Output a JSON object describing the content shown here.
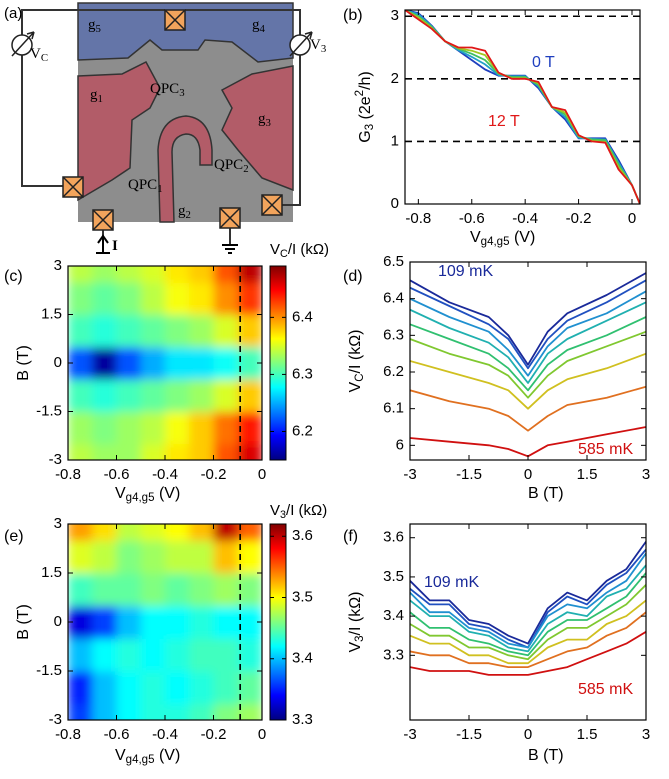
{
  "diagram": {
    "panel": "(a)",
    "labels": [
      [
        "g",
        {
          "sub": "5"
        }
      ],
      [
        "g",
        {
          "sub": "4"
        }
      ],
      [
        "g",
        {
          "sub": "1"
        }
      ],
      [
        "g",
        {
          "sub": "3"
        }
      ],
      [
        "g",
        {
          "sub": "2"
        }
      ],
      [
        "QPC",
        {
          "sub": "3"
        }
      ],
      [
        "QPC",
        {
          "sub": "1"
        }
      ],
      [
        "QPC",
        {
          "sub": "2"
        }
      ],
      [
        "V",
        {
          "sub": "C"
        }
      ],
      [
        "V",
        {
          "sub": "3"
        }
      ],
      [
        "I"
      ]
    ]
  },
  "chart_data": [
    {
      "type": "line",
      "panel": "(b)",
      "ylabel": [
        "G",
        {
          "sub": "3"
        },
        " (2e",
        {
          "sup": "2"
        },
        "/h)"
      ],
      "xlabel": [
        "V",
        {
          "sub": "g4,g5"
        },
        " (V)"
      ],
      "xlim": [
        -0.85,
        0.03
      ],
      "ylim": [
        0,
        3.1
      ],
      "xticks": [
        -0.8,
        -0.6,
        -0.4,
        -0.2,
        0
      ],
      "yticks": [
        0,
        1,
        2,
        3
      ],
      "hlines": [
        1,
        2,
        3
      ],
      "x": [
        -0.85,
        -0.8,
        -0.75,
        -0.7,
        -0.65,
        -0.6,
        -0.55,
        -0.5,
        -0.45,
        -0.4,
        -0.35,
        -0.3,
        -0.25,
        -0.2,
        -0.15,
        -0.1,
        -0.05,
        0,
        0.03
      ],
      "series": [
        {
          "color": "#1f3fbf",
          "values": [
            3.1,
            3.05,
            2.85,
            2.6,
            2.45,
            2.3,
            2.15,
            2.05,
            2.05,
            2.05,
            1.85,
            1.55,
            1.35,
            1.05,
            1.05,
            1.05,
            0.7,
            0.3,
            0
          ]
        },
        {
          "color": "#20a0c8",
          "values": [
            3.1,
            3.03,
            2.84,
            2.6,
            2.46,
            2.35,
            2.23,
            2.06,
            2.04,
            2.04,
            1.88,
            1.55,
            1.39,
            1.06,
            1.04,
            1.03,
            0.66,
            0.3,
            0
          ]
        },
        {
          "color": "#40c060",
          "values": [
            3.1,
            3.0,
            2.83,
            2.6,
            2.48,
            2.4,
            2.3,
            2.08,
            2.03,
            2.03,
            1.9,
            1.55,
            1.43,
            1.08,
            1.03,
            1.02,
            0.63,
            0.3,
            0
          ]
        },
        {
          "color": "#a0c820",
          "values": [
            3.1,
            2.98,
            2.81,
            2.6,
            2.49,
            2.45,
            2.38,
            2.09,
            2.01,
            2.01,
            1.93,
            1.55,
            1.46,
            1.09,
            1.01,
            0.99,
            0.59,
            0.3,
            0
          ]
        },
        {
          "color": "#e01818",
          "values": [
            3.1,
            2.95,
            2.8,
            2.6,
            2.5,
            2.5,
            2.45,
            2.1,
            2.0,
            2.0,
            1.95,
            1.55,
            1.5,
            1.1,
            1.0,
            0.98,
            0.55,
            0.3,
            0
          ]
        }
      ],
      "annotations": [
        {
          "text": "0 T",
          "color": "#1f3fbf"
        },
        {
          "text": "12 T",
          "color": "#e01818"
        }
      ]
    },
    {
      "type": "heatmap",
      "panel": "(c)",
      "colormap": "jet",
      "ylabel": [
        "B (T)"
      ],
      "xlabel": [
        "V",
        {
          "sub": "g4,g5"
        },
        " (V)"
      ],
      "colorbar_label": [
        "V",
        {
          "sub": "C"
        },
        "/I (kΩ)"
      ],
      "xlim": [
        -0.8,
        0
      ],
      "ylim": [
        -3,
        3
      ],
      "xticks": [
        -0.8,
        -0.6,
        -0.4,
        -0.2,
        0
      ],
      "yticks": [
        3,
        1.5,
        0,
        -1.5,
        -3
      ],
      "clim": [
        6.15,
        6.49
      ],
      "cbticks": [
        6.2,
        6.3,
        6.4
      ],
      "vline": -0.09,
      "x": [
        -0.75,
        -0.65,
        -0.55,
        -0.45,
        -0.35,
        -0.25,
        -0.15,
        -0.05
      ],
      "y": [
        -3,
        -2,
        -1,
        0,
        1,
        2,
        3
      ],
      "z": [
        [
          6.34,
          6.33,
          6.33,
          6.35,
          6.37,
          6.38,
          6.42,
          6.46
        ],
        [
          6.33,
          6.32,
          6.33,
          6.34,
          6.36,
          6.38,
          6.41,
          6.44
        ],
        [
          6.3,
          6.29,
          6.3,
          6.31,
          6.32,
          6.33,
          6.35,
          6.38
        ],
        [
          6.22,
          6.16,
          6.22,
          6.25,
          6.27,
          6.27,
          6.28,
          6.3
        ],
        [
          6.3,
          6.29,
          6.3,
          6.31,
          6.32,
          6.33,
          6.35,
          6.38
        ],
        [
          6.32,
          6.31,
          6.32,
          6.34,
          6.36,
          6.37,
          6.4,
          6.43
        ],
        [
          6.34,
          6.33,
          6.34,
          6.35,
          6.37,
          6.38,
          6.42,
          6.47
        ]
      ]
    },
    {
      "type": "line",
      "panel": "(d)",
      "ylabel": [
        "V",
        {
          "sub": "C"
        },
        "/I (kΩ)"
      ],
      "xlabel": [
        "B (T)"
      ],
      "xlim": [
        -3,
        3
      ],
      "ylim": [
        5.96,
        6.5
      ],
      "xticks": [
        -3,
        -1.5,
        0,
        1.5,
        3
      ],
      "yticks": [
        6,
        6.1,
        6.2,
        6.3,
        6.4,
        6.5
      ],
      "x": [
        -3,
        -2,
        -1,
        -0.5,
        0,
        0.5,
        1,
        2,
        3
      ],
      "series": [
        {
          "color": "#1a2a9a",
          "values": [
            6.45,
            6.39,
            6.35,
            6.3,
            6.22,
            6.31,
            6.36,
            6.41,
            6.47
          ]
        },
        {
          "color": "#2050c0",
          "values": [
            6.43,
            6.38,
            6.33,
            6.29,
            6.21,
            6.29,
            6.34,
            6.39,
            6.45
          ]
        },
        {
          "color": "#2090d0",
          "values": [
            6.4,
            6.35,
            6.31,
            6.26,
            6.19,
            6.27,
            6.32,
            6.36,
            6.42
          ]
        },
        {
          "color": "#20b0b0",
          "values": [
            6.37,
            6.32,
            6.28,
            6.24,
            6.17,
            6.25,
            6.29,
            6.34,
            6.39
          ]
        },
        {
          "color": "#30c070",
          "values": [
            6.33,
            6.29,
            6.25,
            6.21,
            6.15,
            6.22,
            6.26,
            6.3,
            6.35
          ]
        },
        {
          "color": "#80c830",
          "values": [
            6.29,
            6.25,
            6.22,
            6.19,
            6.13,
            6.19,
            6.23,
            6.27,
            6.31
          ]
        },
        {
          "color": "#d0c020",
          "values": [
            6.23,
            6.2,
            6.17,
            6.15,
            6.1,
            6.15,
            6.18,
            6.21,
            6.25
          ]
        },
        {
          "color": "#e07020",
          "values": [
            6.15,
            6.12,
            6.1,
            6.08,
            6.04,
            6.08,
            6.11,
            6.13,
            6.16
          ]
        },
        {
          "color": "#d01010",
          "values": [
            6.02,
            6.01,
            6.0,
            5.99,
            5.97,
            6.0,
            6.01,
            6.03,
            6.05
          ]
        }
      ],
      "annotations": [
        {
          "text": "109 mK",
          "color": "#1a2a9a"
        },
        {
          "text": "585 mK",
          "color": "#d01010"
        }
      ]
    },
    {
      "type": "heatmap",
      "panel": "(e)",
      "colormap": "jet",
      "ylabel": [
        "B (T)"
      ],
      "xlabel": [
        "V",
        {
          "sub": "g4,g5"
        },
        " (V)"
      ],
      "colorbar_label": [
        "V",
        {
          "sub": "3"
        },
        "/I (kΩ)"
      ],
      "xlim": [
        -0.8,
        0
      ],
      "ylim": [
        -3,
        3
      ],
      "xticks": [
        -0.8,
        -0.6,
        -0.4,
        -0.2,
        0
      ],
      "yticks": [
        3,
        1.5,
        0,
        -1.5,
        -3
      ],
      "clim": [
        3.3,
        3.62
      ],
      "cbticks": [
        3.3,
        3.4,
        3.5,
        3.6
      ],
      "vline": -0.09,
      "x": [
        -0.75,
        -0.65,
        -0.55,
        -0.45,
        -0.35,
        -0.25,
        -0.15,
        -0.05
      ],
      "y": [
        -3,
        -2,
        -1,
        0,
        1,
        2,
        3
      ],
      "z": [
        [
          3.36,
          3.4,
          3.42,
          3.43,
          3.43,
          3.44,
          3.46,
          3.47
        ],
        [
          3.35,
          3.4,
          3.42,
          3.43,
          3.42,
          3.43,
          3.44,
          3.45
        ],
        [
          3.4,
          3.42,
          3.43,
          3.42,
          3.43,
          3.44,
          3.44,
          3.43
        ],
        [
          3.33,
          3.36,
          3.4,
          3.42,
          3.42,
          3.43,
          3.42,
          3.42
        ],
        [
          3.44,
          3.45,
          3.45,
          3.46,
          3.45,
          3.46,
          3.47,
          3.46
        ],
        [
          3.49,
          3.48,
          3.46,
          3.47,
          3.48,
          3.48,
          3.52,
          3.5
        ],
        [
          3.53,
          3.51,
          3.48,
          3.49,
          3.5,
          3.52,
          3.6,
          3.55
        ]
      ]
    },
    {
      "type": "line",
      "panel": "(f)",
      "ylabel": [
        "V",
        {
          "sub": "3"
        },
        "/I (kΩ)"
      ],
      "xlabel": [
        "B (T)"
      ],
      "xlim": [
        -3,
        3
      ],
      "ylim": [
        3.135,
        3.635
      ],
      "xticks": [
        -3,
        -1.5,
        0,
        1.5,
        3
      ],
      "yticks": [
        3.3,
        3.4,
        3.5,
        3.6
      ],
      "x": [
        -3,
        -2.5,
        -2,
        -1.5,
        -1,
        -0.5,
        0,
        0.5,
        1,
        1.5,
        2,
        2.5,
        3
      ],
      "series": [
        {
          "color": "#1a2a9a",
          "values": [
            3.49,
            3.44,
            3.44,
            3.39,
            3.38,
            3.35,
            3.33,
            3.42,
            3.46,
            3.44,
            3.49,
            3.52,
            3.59
          ]
        },
        {
          "color": "#2050c0",
          "values": [
            3.47,
            3.43,
            3.43,
            3.38,
            3.37,
            3.34,
            3.32,
            3.41,
            3.45,
            3.43,
            3.48,
            3.51,
            3.57
          ]
        },
        {
          "color": "#2090d0",
          "values": [
            3.46,
            3.41,
            3.41,
            3.37,
            3.36,
            3.33,
            3.32,
            3.4,
            3.43,
            3.42,
            3.46,
            3.49,
            3.56
          ]
        },
        {
          "color": "#20b0b0",
          "values": [
            3.44,
            3.4,
            3.4,
            3.36,
            3.35,
            3.32,
            3.31,
            3.38,
            3.41,
            3.4,
            3.45,
            3.47,
            3.53
          ]
        },
        {
          "color": "#30c070",
          "values": [
            3.41,
            3.37,
            3.37,
            3.34,
            3.33,
            3.31,
            3.3,
            3.36,
            3.39,
            3.39,
            3.42,
            3.45,
            3.51
          ]
        },
        {
          "color": "#80c830",
          "values": [
            3.38,
            3.35,
            3.35,
            3.32,
            3.32,
            3.3,
            3.29,
            3.34,
            3.37,
            3.37,
            3.4,
            3.43,
            3.48
          ]
        },
        {
          "color": "#d0c020",
          "values": [
            3.35,
            3.33,
            3.33,
            3.3,
            3.3,
            3.28,
            3.28,
            3.32,
            3.34,
            3.34,
            3.38,
            3.4,
            3.44
          ]
        },
        {
          "color": "#e07020",
          "values": [
            3.31,
            3.3,
            3.3,
            3.28,
            3.28,
            3.27,
            3.27,
            3.29,
            3.31,
            3.32,
            3.35,
            3.37,
            3.41
          ]
        },
        {
          "color": "#d01010",
          "values": [
            3.27,
            3.26,
            3.26,
            3.26,
            3.25,
            3.25,
            3.25,
            3.26,
            3.27,
            3.29,
            3.31,
            3.33,
            3.36
          ]
        }
      ],
      "annotations": [
        {
          "text": "109 mK",
          "color": "#1a2a9a"
        },
        {
          "text": "585 mK",
          "color": "#d01010"
        }
      ]
    }
  ]
}
